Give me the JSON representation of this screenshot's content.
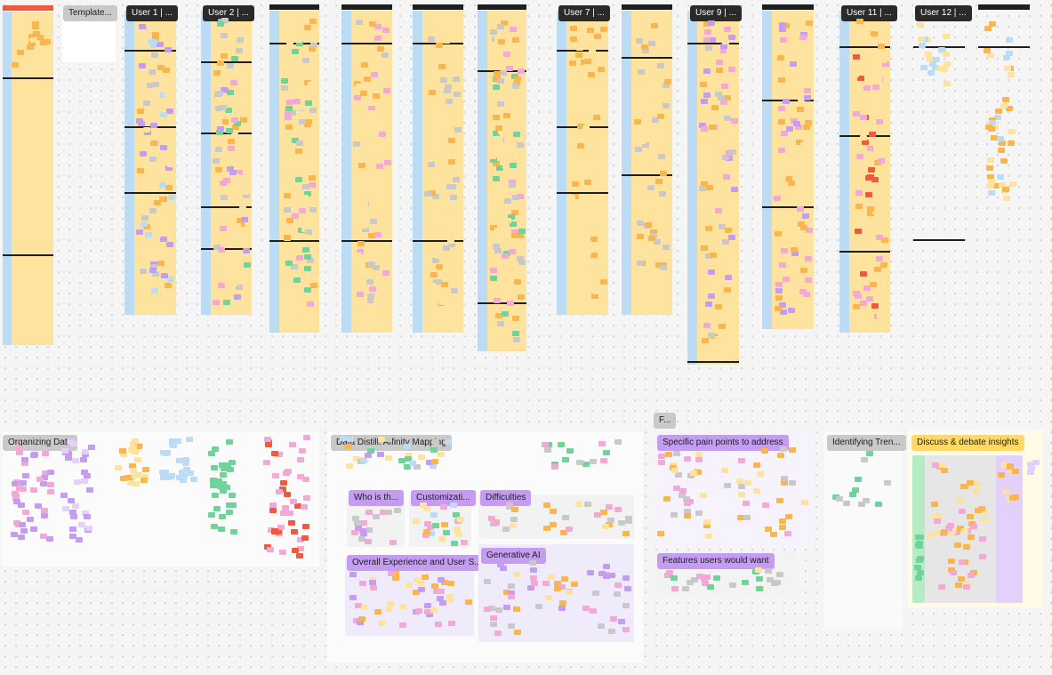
{
  "board": {
    "colors": {
      "yellow": "#fde39d",
      "blue": "#bcdcf6",
      "purple": "#c49cf2",
      "green": "#6fd39a",
      "pink": "#f4a8d6",
      "gray": "#c9c9c9",
      "red": "#ef5a3c",
      "orange": "#fbb54d",
      "lightpurple": "#e3d1fb"
    },
    "frame_tags": [
      "Template...",
      "User 1 | ...",
      "User 2 | ...",
      "User 7 | ...",
      "User 9 | ...",
      "User 11 | ...",
      "User 12 | ..."
    ],
    "sections": {
      "organizing": "Organizing Data",
      "affinity": "Data Distill: Affinity Mapping",
      "who": "Who is th...",
      "custom": "Customizati...",
      "difficulties": "Difficulties",
      "overall": "Overall Experience and User S...",
      "genai": "Generative AI",
      "f_tag": "F...",
      "pain": "Specific pain points to address",
      "features": "Features users would want",
      "trends": "Identifying Tren...",
      "debate": "Discuss & debate insights"
    }
  }
}
